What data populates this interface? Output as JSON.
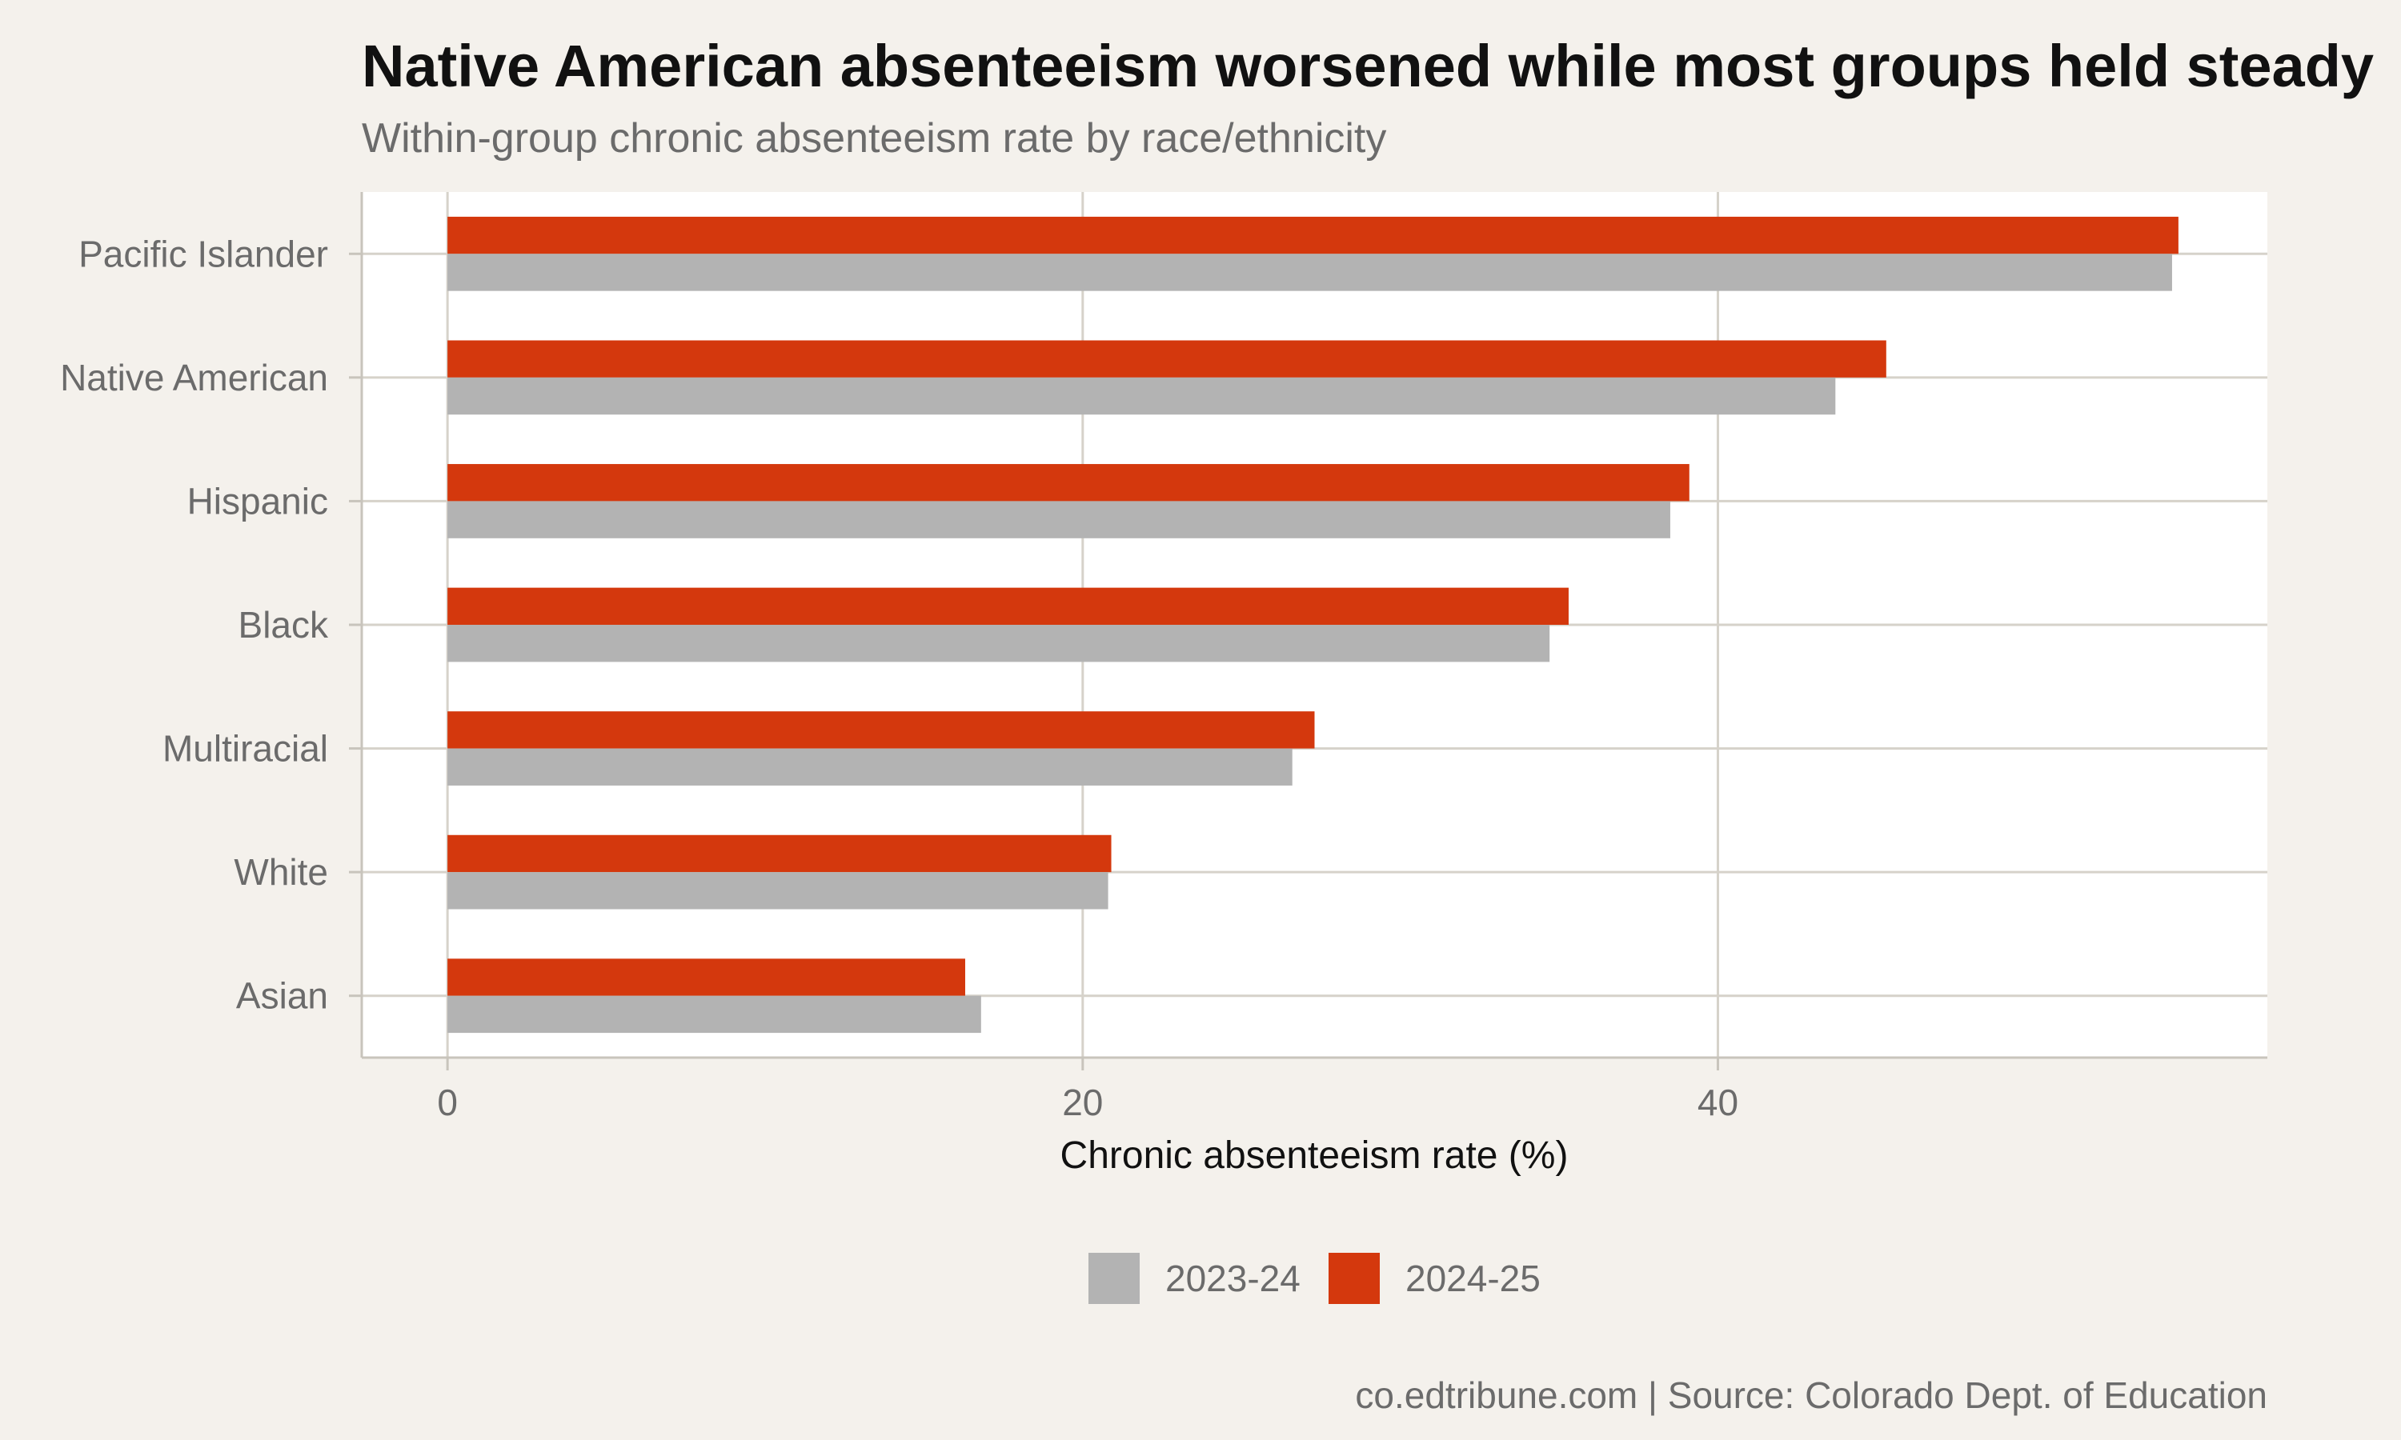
{
  "chart_data": {
    "type": "bar",
    "orientation": "horizontal",
    "title": "Native American absenteeism worsened while most groups held steady",
    "subtitle": "Within-group chronic absenteeism rate by race/ethnicity",
    "xlabel": "Chronic absenteeism rate (%)",
    "ylabel": "",
    "xlim": [
      -2.7,
      57.3
    ],
    "xticks": [
      0,
      20,
      40
    ],
    "categories": [
      "Pacific Islander",
      "Native American",
      "Hispanic",
      "Black",
      "Multiracial",
      "White",
      "Asian"
    ],
    "series": [
      {
        "name": "2023-24",
        "color": "#b3b3b3",
        "values": [
          54.3,
          43.7,
          38.5,
          34.7,
          26.6,
          20.8,
          16.8
        ]
      },
      {
        "name": "2024-25",
        "color": "#d4380d",
        "values": [
          54.5,
          45.3,
          39.1,
          35.3,
          27.3,
          20.9,
          16.3
        ]
      }
    ],
    "grid": true,
    "legend_position": "bottom",
    "caption": "co.edtribune.com | Source: Colorado Dept. of Education"
  }
}
